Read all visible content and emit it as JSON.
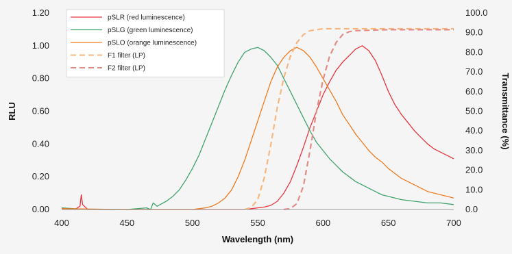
{
  "chart_data": {
    "type": "line",
    "xlabel": "Wavelength (nm)",
    "ylabel": "RLU",
    "y2label": "Transmittance (%)",
    "xlim": [
      400,
      700
    ],
    "ylim": [
      0,
      1.2
    ],
    "y2lim": [
      0,
      100
    ],
    "xticks": [
      "400",
      "450",
      "500",
      "550",
      "600",
      "650",
      "700"
    ],
    "yticks": [
      "0.00",
      "0.20",
      "0.40",
      "0.60",
      "0.80",
      "1.00",
      "1.20"
    ],
    "y2ticks": [
      "0.0",
      "10.0",
      "20.0",
      "30.0",
      "40.0",
      "50.0",
      "60.0",
      "70.0",
      "80.0",
      "90.0",
      "100.0"
    ],
    "grid": false,
    "legend_position": "top-left",
    "series": [
      {
        "name": "pSLR (red luminescence)",
        "color": "#e8343c",
        "dash": false,
        "axis": "left",
        "points": [
          [
            400,
            0.01
          ],
          [
            410,
            0.0
          ],
          [
            414,
            0.02
          ],
          [
            415,
            0.09
          ],
          [
            416,
            0.03
          ],
          [
            420,
            0.0
          ],
          [
            500,
            0.0
          ],
          [
            530,
            0.0
          ],
          [
            540,
            0.0
          ],
          [
            545,
            0.005
          ],
          [
            550,
            0.01
          ],
          [
            555,
            0.015
          ],
          [
            560,
            0.025
          ],
          [
            565,
            0.05
          ],
          [
            570,
            0.1
          ],
          [
            575,
            0.17
          ],
          [
            580,
            0.27
          ],
          [
            585,
            0.38
          ],
          [
            590,
            0.5
          ],
          [
            595,
            0.6
          ],
          [
            600,
            0.7
          ],
          [
            605,
            0.78
          ],
          [
            610,
            0.85
          ],
          [
            615,
            0.9
          ],
          [
            620,
            0.94
          ],
          [
            625,
            0.98
          ],
          [
            630,
            1.0
          ],
          [
            635,
            0.97
          ],
          [
            640,
            0.91
          ],
          [
            645,
            0.82
          ],
          [
            650,
            0.72
          ],
          [
            655,
            0.64
          ],
          [
            660,
            0.58
          ],
          [
            665,
            0.53
          ],
          [
            670,
            0.48
          ],
          [
            675,
            0.44
          ],
          [
            680,
            0.4
          ],
          [
            685,
            0.37
          ],
          [
            690,
            0.35
          ],
          [
            695,
            0.33
          ],
          [
            700,
            0.31
          ]
        ]
      },
      {
        "name": "pSLG (green luminescence)",
        "color": "#3fa26d",
        "dash": false,
        "axis": "left",
        "points": [
          [
            400,
            0.01
          ],
          [
            420,
            0.0
          ],
          [
            450,
            0.0
          ],
          [
            465,
            0.01
          ],
          [
            468,
            0.0
          ],
          [
            470,
            0.04
          ],
          [
            473,
            0.02
          ],
          [
            480,
            0.05
          ],
          [
            485,
            0.08
          ],
          [
            490,
            0.12
          ],
          [
            495,
            0.18
          ],
          [
            500,
            0.25
          ],
          [
            505,
            0.33
          ],
          [
            510,
            0.43
          ],
          [
            515,
            0.53
          ],
          [
            520,
            0.63
          ],
          [
            525,
            0.73
          ],
          [
            530,
            0.82
          ],
          [
            535,
            0.9
          ],
          [
            540,
            0.96
          ],
          [
            545,
            0.98
          ],
          [
            550,
            0.99
          ],
          [
            555,
            0.97
          ],
          [
            560,
            0.93
          ],
          [
            565,
            0.88
          ],
          [
            570,
            0.8
          ],
          [
            575,
            0.72
          ],
          [
            580,
            0.64
          ],
          [
            585,
            0.56
          ],
          [
            590,
            0.48
          ],
          [
            595,
            0.41
          ],
          [
            600,
            0.36
          ],
          [
            605,
            0.31
          ],
          [
            610,
            0.27
          ],
          [
            615,
            0.23
          ],
          [
            620,
            0.2
          ],
          [
            625,
            0.17
          ],
          [
            630,
            0.15
          ],
          [
            635,
            0.13
          ],
          [
            640,
            0.11
          ],
          [
            645,
            0.09
          ],
          [
            650,
            0.08
          ],
          [
            660,
            0.06
          ],
          [
            670,
            0.05
          ],
          [
            680,
            0.04
          ],
          [
            690,
            0.04
          ],
          [
            700,
            0.03
          ]
        ]
      },
      {
        "name": "pSLO (orange luminescence)",
        "color": "#f07a1e",
        "dash": false,
        "axis": "left",
        "points": [
          [
            400,
            0.005
          ],
          [
            450,
            0.0
          ],
          [
            500,
            0.0
          ],
          [
            505,
            0.005
          ],
          [
            510,
            0.01
          ],
          [
            515,
            0.02
          ],
          [
            520,
            0.04
          ],
          [
            525,
            0.07
          ],
          [
            530,
            0.12
          ],
          [
            535,
            0.2
          ],
          [
            540,
            0.3
          ],
          [
            545,
            0.42
          ],
          [
            550,
            0.54
          ],
          [
            555,
            0.66
          ],
          [
            560,
            0.78
          ],
          [
            565,
            0.87
          ],
          [
            570,
            0.93
          ],
          [
            575,
            0.97
          ],
          [
            580,
            0.99
          ],
          [
            585,
            0.97
          ],
          [
            590,
            0.93
          ],
          [
            595,
            0.87
          ],
          [
            600,
            0.8
          ],
          [
            605,
            0.73
          ],
          [
            610,
            0.66
          ],
          [
            615,
            0.58
          ],
          [
            620,
            0.52
          ],
          [
            625,
            0.46
          ],
          [
            630,
            0.41
          ],
          [
            635,
            0.36
          ],
          [
            640,
            0.32
          ],
          [
            645,
            0.29
          ],
          [
            650,
            0.25
          ],
          [
            655,
            0.22
          ],
          [
            660,
            0.19
          ],
          [
            665,
            0.17
          ],
          [
            670,
            0.15
          ],
          [
            675,
            0.13
          ],
          [
            680,
            0.11
          ],
          [
            685,
            0.1
          ],
          [
            690,
            0.09
          ],
          [
            695,
            0.08
          ],
          [
            700,
            0.07
          ]
        ]
      },
      {
        "name": "F1 filter (LP)",
        "color": "#f7b67d",
        "dash": true,
        "axis": "right",
        "points": [
          [
            540,
            0
          ],
          [
            545,
            1
          ],
          [
            550,
            5
          ],
          [
            555,
            16
          ],
          [
            560,
            33
          ],
          [
            565,
            52
          ],
          [
            570,
            67
          ],
          [
            575,
            78
          ],
          [
            580,
            85
          ],
          [
            585,
            89
          ],
          [
            590,
            91
          ],
          [
            595,
            91.5
          ],
          [
            600,
            92
          ],
          [
            650,
            92
          ],
          [
            700,
            92
          ]
        ]
      },
      {
        "name": "F2 filter (LP)",
        "color": "#e28c86",
        "dash": true,
        "axis": "right",
        "points": [
          [
            570,
            0
          ],
          [
            575,
            0.5
          ],
          [
            580,
            3
          ],
          [
            585,
            12
          ],
          [
            590,
            30
          ],
          [
            595,
            50
          ],
          [
            600,
            66
          ],
          [
            605,
            78
          ],
          [
            610,
            85
          ],
          [
            615,
            89
          ],
          [
            620,
            90.5
          ],
          [
            625,
            91
          ],
          [
            650,
            91.5
          ],
          [
            700,
            91.5
          ]
        ]
      }
    ]
  }
}
